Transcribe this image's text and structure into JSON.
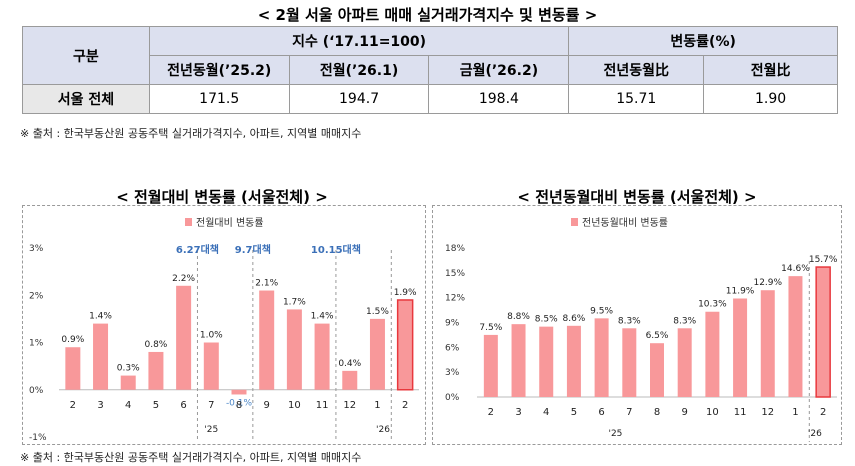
{
  "table": {
    "title": "< 2월 서울 아파트 매매 실거래가격지수 및 변동률 >",
    "col_group": "구분",
    "index_header": "지수 (‘17.11=100)",
    "change_header": "변동률(%)",
    "sub_headers": [
      "전년동월(’25.2)",
      "전월(’26.1)",
      "금월(’26.2)",
      "전년동월比",
      "전월比"
    ],
    "row_label": "서울 전체",
    "values": [
      "171.5",
      "194.7",
      "198.4",
      "15.71",
      "1.90"
    ],
    "source": "※ 출처 : 한국부동산원 공동주택 실거래가격지수, 아파트, 지역별 매매지수"
  },
  "chart_data": [
    {
      "type": "bar",
      "title": "< 전월대비 변동률 (서울전체) >",
      "legend": "전월대비 변동률",
      "legend_position": "top-left",
      "categories": [
        "2",
        "3",
        "4",
        "5",
        "6",
        "7",
        "8",
        "9",
        "10",
        "11",
        "12",
        "1",
        "2"
      ],
      "values": [
        0.9,
        1.4,
        0.3,
        0.8,
        2.2,
        1.0,
        -0.1,
        2.1,
        1.7,
        1.4,
        0.4,
        1.5,
        1.9
      ],
      "labels": [
        "0.9%",
        "1.4%",
        "0.3%",
        "0.8%",
        "2.2%",
        "1.0%",
        "-0.1%",
        "2.1%",
        "1.7%",
        "1.4%",
        "0.4%",
        "1.5%",
        "1.9%"
      ],
      "ylim": [
        -1,
        3
      ],
      "yticks": [
        -1,
        0,
        1,
        2,
        3
      ],
      "ytick_labels": [
        "-1%",
        "0%",
        "1%",
        "2%",
        "3%"
      ],
      "year_labels": [
        "'25",
        "'26"
      ],
      "annotations": [
        "6.27대책",
        "9.7대책",
        "10.15대책"
      ],
      "grid": false,
      "bar_color": "#f8989a",
      "highlight_color": "#e8383d"
    },
    {
      "type": "bar",
      "title": "< 전년동월대비 변동률 (서울전체) >",
      "legend": "전년동월대비 변동률",
      "legend_position": "top-left",
      "categories": [
        "2",
        "3",
        "4",
        "5",
        "6",
        "7",
        "8",
        "9",
        "10",
        "11",
        "12",
        "1",
        "2"
      ],
      "values": [
        7.5,
        8.8,
        8.5,
        8.6,
        9.5,
        8.3,
        6.5,
        8.3,
        10.3,
        11.9,
        12.9,
        14.6,
        15.7
      ],
      "labels": [
        "7.5%",
        "8.8%",
        "8.5%",
        "8.6%",
        "9.5%",
        "8.3%",
        "6.5%",
        "8.3%",
        "10.3%",
        "11.9%",
        "12.9%",
        "14.6%",
        "15.7%"
      ],
      "ylim": [
        0,
        18
      ],
      "yticks": [
        0,
        3,
        6,
        9,
        12,
        15,
        18
      ],
      "ytick_labels": [
        "0%",
        "3%",
        "6%",
        "9%",
        "12%",
        "15%",
        "18%"
      ],
      "year_labels": [
        "'25",
        "'26"
      ],
      "grid": false,
      "bar_color": "#f8989a",
      "highlight_color": "#e8383d"
    }
  ],
  "footer_source": "※ 출처 : 한국부동산원 공동주택 실거래가격지수, 아파트, 지역별 매매지수"
}
